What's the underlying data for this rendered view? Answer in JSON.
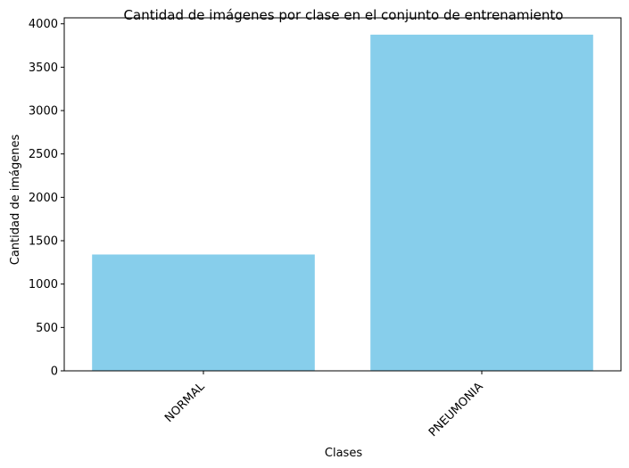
{
  "chart_data": {
    "type": "bar",
    "title": "Cantidad de imágenes por clase en el conjunto de entrenamiento",
    "xlabel": "Clases",
    "ylabel": "Cantidad de imágenes",
    "categories": [
      "NORMAL",
      "PNEUMONIA"
    ],
    "values": [
      1341,
      3875
    ],
    "ylim": [
      0,
      4069
    ],
    "yticks": [
      0,
      500,
      1000,
      1500,
      2000,
      2500,
      3000,
      3500,
      4000
    ],
    "bar_color": "#87CEEB",
    "grid": false,
    "x_tick_rotation": 45
  }
}
